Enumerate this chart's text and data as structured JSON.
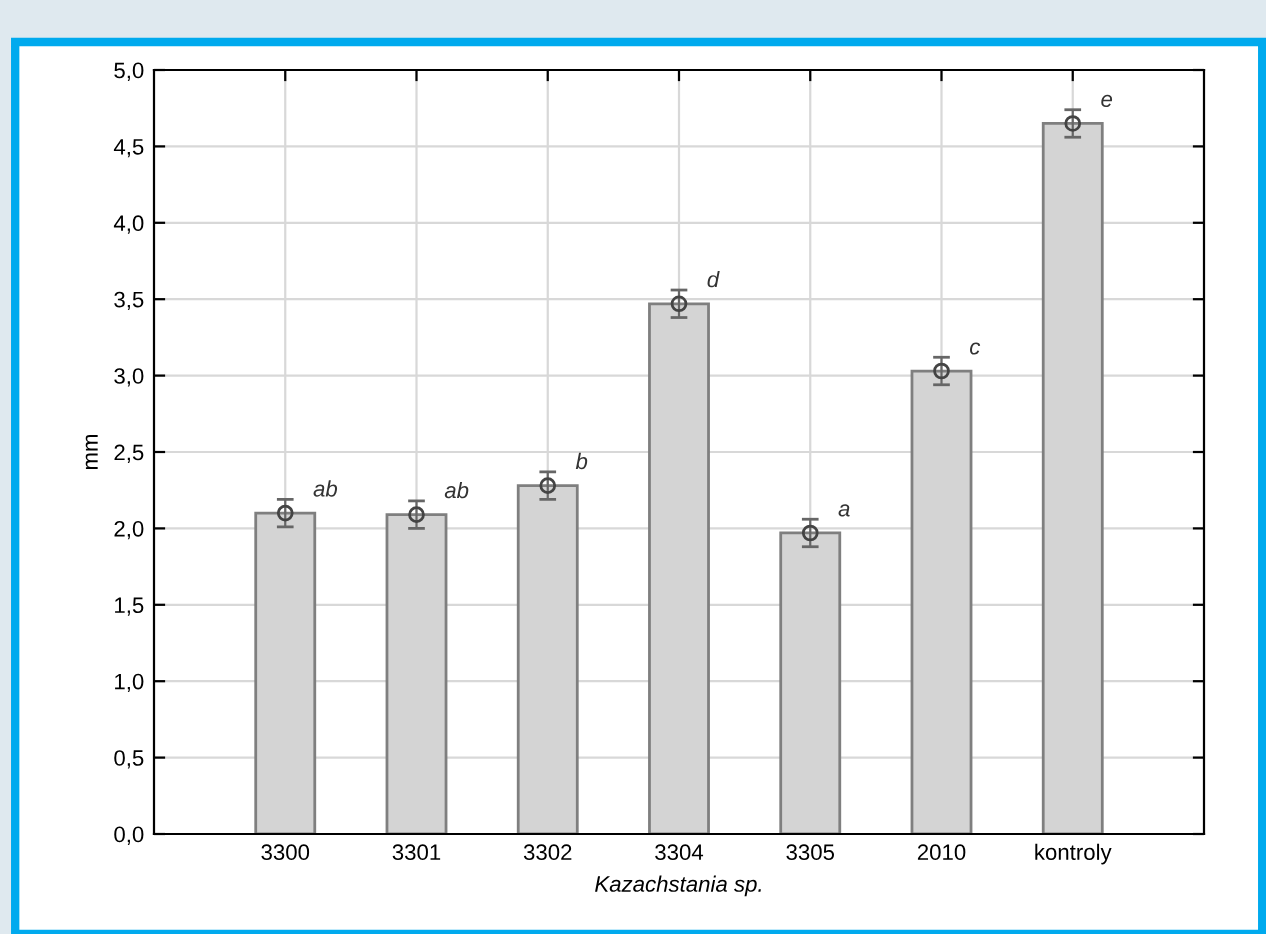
{
  "chart_data": {
    "type": "bar",
    "xlabel": "Kazachstania sp.",
    "ylabel": "mm",
    "categories": [
      "3300",
      "3301",
      "3302",
      "3304",
      "3305",
      "2010",
      "kontroly"
    ],
    "values": [
      2.1,
      2.09,
      2.28,
      3.47,
      1.97,
      3.03,
      4.65
    ],
    "errors": [
      0.09,
      0.09,
      0.09,
      0.09,
      0.09,
      0.09,
      0.09
    ],
    "color": "#d4d4d4",
    "marker": "circle",
    "ylim": [
      0,
      5
    ],
    "yticks": [
      {
        "value": 0,
        "label": "0,0"
      },
      {
        "value": 0.5,
        "label": "0,5"
      },
      {
        "value": 1,
        "label": "1,0"
      },
      {
        "value": 1.5,
        "label": "1,5"
      },
      {
        "value": 2,
        "label": "2,0"
      },
      {
        "value": 2.5,
        "label": "2,5"
      },
      {
        "value": 3,
        "label": "3,0"
      },
      {
        "value": 3.5,
        "label": "3,5"
      },
      {
        "value": 4,
        "label": "4,0"
      },
      {
        "value": 4.5,
        "label": "4,5"
      },
      {
        "value": 5,
        "label": "5,0"
      }
    ],
    "grid": true,
    "annotations": [
      {
        "text": "ab",
        "x": "3300",
        "y": 2.1
      },
      {
        "text": "ab",
        "x": "3301",
        "y": 2.09
      },
      {
        "text": "b",
        "x": "3302",
        "y": 2.28
      },
      {
        "text": "d",
        "x": "3304",
        "y": 3.47
      },
      {
        "text": "a",
        "x": "3305",
        "y": 1.97
      },
      {
        "text": "c",
        "x": "2010",
        "y": 3.03
      },
      {
        "text": "e",
        "x": "kontroly",
        "y": 4.65
      }
    ]
  }
}
